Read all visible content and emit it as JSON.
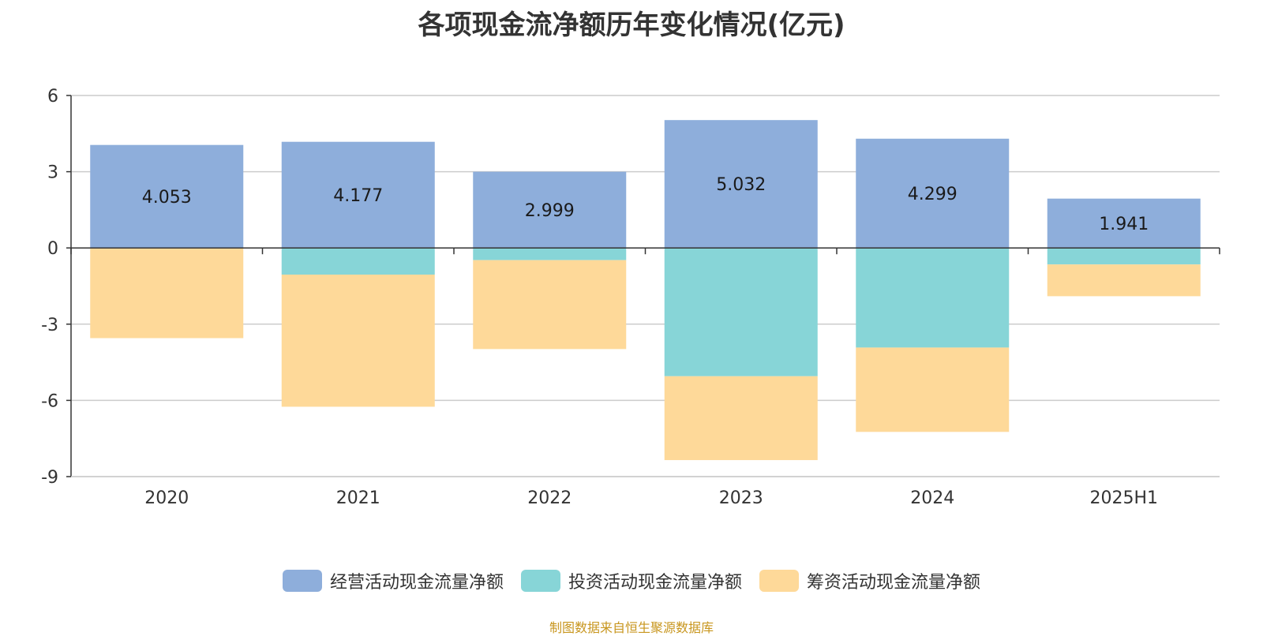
{
  "chart_data": {
    "type": "bar",
    "stacked": true,
    "title": "各项现金流净额历年变化情况(亿元)",
    "categories": [
      "2020",
      "2021",
      "2022",
      "2023",
      "2024",
      "2025H1"
    ],
    "series": [
      {
        "name": "经营活动现金流量净额",
        "color": "#8eaedb",
        "values": [
          4.053,
          4.177,
          2.999,
          5.032,
          4.299,
          1.941
        ],
        "show_labels": true
      },
      {
        "name": "投资活动现金流量净额",
        "color": "#87d5d7",
        "values": [
          0,
          -1.05,
          -0.48,
          -5.05,
          -3.92,
          -0.65
        ],
        "show_labels": false
      },
      {
        "name": "筹资活动现金流量净额",
        "color": "#fed999",
        "values": [
          -3.55,
          -5.2,
          -3.5,
          -3.3,
          -3.32,
          -1.25
        ],
        "show_labels": false
      }
    ],
    "ylim": [
      -9,
      6
    ],
    "yticks": [
      "6",
      "3",
      "0",
      "-3",
      "-6",
      "-9"
    ],
    "ytick_values": [
      6,
      3,
      0,
      -3,
      -6,
      -9
    ],
    "grid": true,
    "legend_position": "bottom"
  },
  "source_note": "制图数据来自恒生聚源数据库"
}
